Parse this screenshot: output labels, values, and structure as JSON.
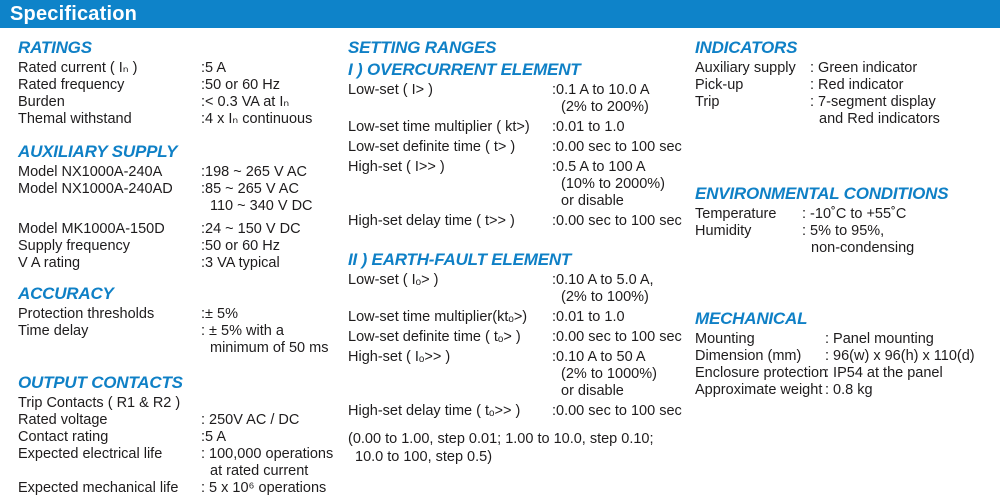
{
  "header": {
    "title": "Specification"
  },
  "colors": {
    "bar": "#0e83c9",
    "heading": "#0f80c6",
    "text": "#1e1c1d"
  },
  "left": {
    "ratings": {
      "title": "RATINGS",
      "rows": [
        {
          "label": "Rated current ( Iₙ )",
          "value": ":5 A"
        },
        {
          "label": "Rated frequency",
          "value": ":50 or 60 Hz"
        },
        {
          "label": "Burden",
          "value": ":< 0.3 VA at Iₙ"
        },
        {
          "label": "Themal withstand",
          "value": ":4 x Iₙ continuous"
        }
      ]
    },
    "auxiliary": {
      "title": "AUXILIARY SUPPLY",
      "rows": [
        {
          "label": "Model NX1000A-240A",
          "value": ":198 ~ 265 V AC"
        },
        {
          "label": "Model NX1000A-240AD",
          "value": ":85 ~ 265 V AC\n110 ~ 340 V DC"
        },
        {
          "label": "Model MK1000A-150D",
          "value": ":24 ~ 150 V DC"
        },
        {
          "label": "Supply frequency",
          "value": ":50 or 60 Hz"
        },
        {
          "label": "V A rating",
          "value": ":3 VA typical"
        }
      ]
    },
    "accuracy": {
      "title": "ACCURACY",
      "rows": [
        {
          "label": "Protection thresholds",
          "value": ":± 5%"
        },
        {
          "label": "Time delay",
          "value": ": ± 5% with a\nminimum of 50 ms"
        }
      ]
    },
    "output_contacts": {
      "title": "OUTPUT CONTACTS",
      "rows": [
        {
          "label": "Trip Contacts ( R1 & R2 )",
          "value": ""
        },
        {
          "label": "Rated voltage",
          "value": ": 250V AC / DC"
        },
        {
          "label": "Contact rating",
          "value": ":5 A"
        },
        {
          "label": "Expected electrical life",
          "value": ": 100,000 operations\nat rated current"
        },
        {
          "label": "Expected mechanical life",
          "value": ": 5 x 10⁶ operations"
        }
      ]
    }
  },
  "middle": {
    "title": "SETTING RANGES",
    "overcurrent": {
      "title": "I ) OVERCURRENT ELEMENT",
      "rows": [
        {
          "label": "Low-set ( I> )",
          "value": ":0.1 A to 10.0 A\n(2% to 200%)"
        },
        {
          "label": "Low-set time multiplier ( kt>)",
          "value": ":0.01 to 1.0"
        },
        {
          "label": "Low-set definite time ( t> )",
          "value": ":0.00 sec to 100 sec"
        },
        {
          "label": "High-set ( I>> )",
          "value": ":0.5 A to 100 A\n(10% to 2000%)\nor disable"
        },
        {
          "label": "High-set delay time ( t>> )",
          "value": ":0.00 sec to 100 sec"
        }
      ]
    },
    "earth_fault": {
      "title": "II ) EARTH-FAULT ELEMENT",
      "rows": [
        {
          "label": "Low-set ( Iₒ> )",
          "value": ":0.10 A to 5.0 A,\n(2% to 100%)"
        },
        {
          "label": "Low-set time multiplier(ktₒ>)",
          "value": ":0.01 to 1.0"
        },
        {
          "label": "Low-set definite time ( tₒ> )",
          "value": ":0.00 sec to 100 sec"
        },
        {
          "label": "High-set ( Iₒ>> )",
          "value": ":0.10 A to 50 A\n(2% to 1000%)\nor disable"
        },
        {
          "label": "High-set delay time ( tₒ>> )",
          "value": ":0.00 sec to 100 sec"
        }
      ]
    },
    "note": "(0.00 to 1.00, step 0.01; 1.00 to 10.0, step 0.10;\n10.0 to 100, step 0.5)"
  },
  "right": {
    "indicators": {
      "title": "INDICATORS",
      "rows": [
        {
          "label": "Auxiliary supply",
          "value": ": Green indicator"
        },
        {
          "label": "Pick-up",
          "value": ": Red indicator"
        },
        {
          "label": "Trip",
          "value": ": 7-segment display\nand Red indicators"
        }
      ]
    },
    "environmental": {
      "title": "ENVIRONMENTAL CONDITIONS",
      "rows": [
        {
          "label": "Temperature",
          "value": ": -10˚C to +55˚C"
        },
        {
          "label": "Humidity",
          "value": ": 5% to 95%,\nnon-condensing"
        }
      ]
    },
    "mechanical": {
      "title": "MECHANICAL",
      "rows": [
        {
          "label": "Mounting",
          "value": ": Panel mounting"
        },
        {
          "label": "Dimension (mm)",
          "value": ": 96(w) x 96(h) x 110(d)"
        },
        {
          "label": "Enclosure protection",
          "value": ": IP54 at the panel"
        },
        {
          "label": "Approximate weight",
          "value": ": 0.8 kg"
        }
      ]
    }
  }
}
